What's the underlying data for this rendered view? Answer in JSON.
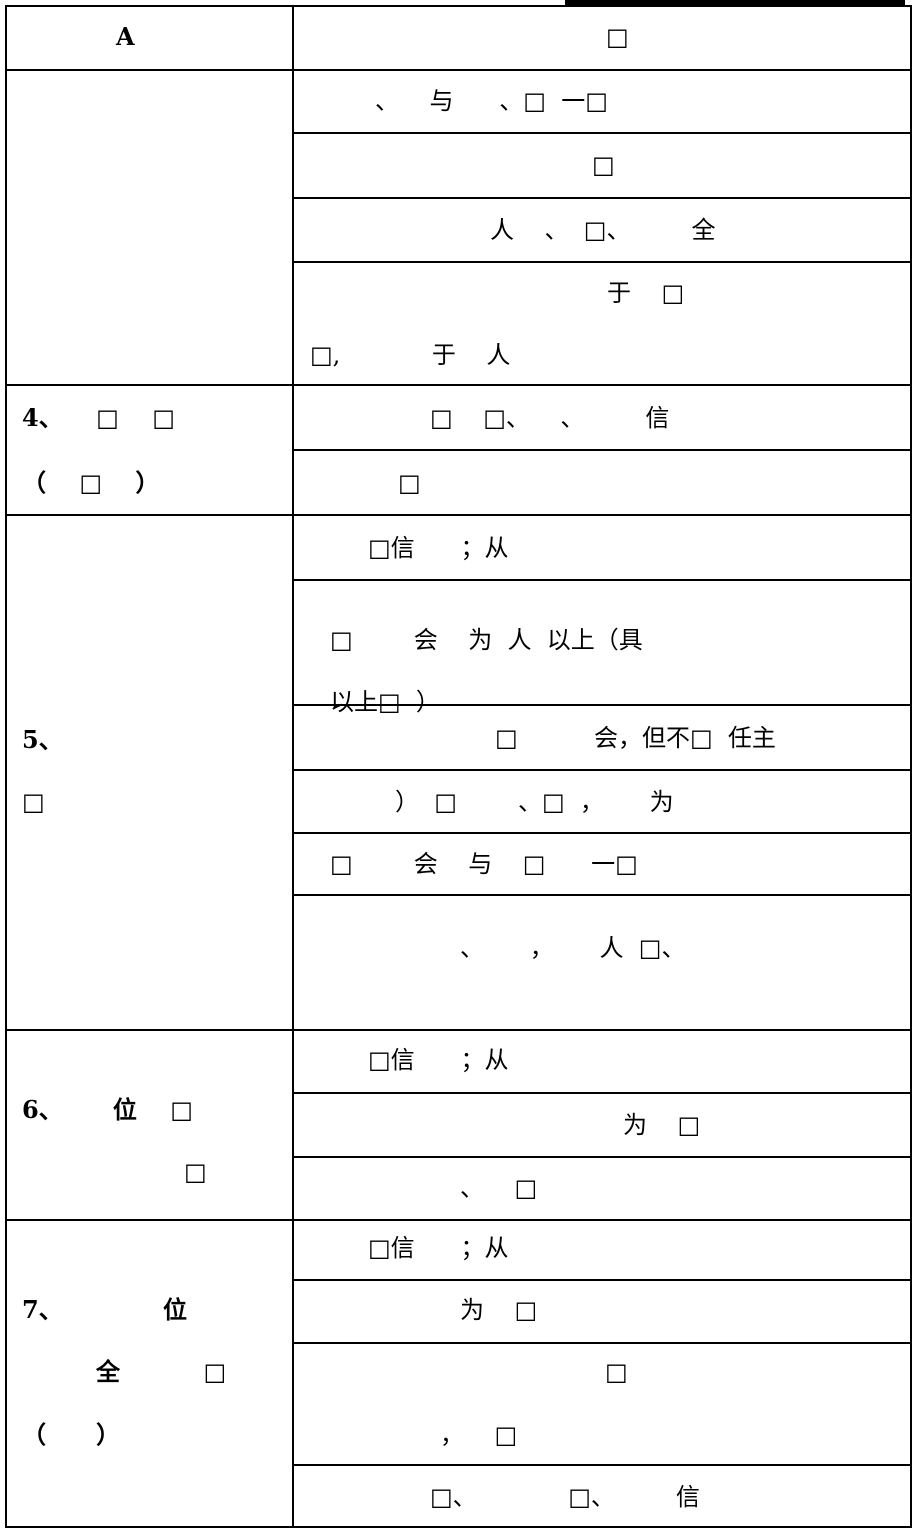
{
  "header": {
    "left": "A",
    "right": "□"
  },
  "groups": [
    {
      "right": [
        [
          "、    与      、□  一□"
        ],
        [
          "□"
        ],
        [
          "人    、  □、        全"
        ],
        [
          "于    □",
          "□,            于    人"
        ]
      ]
    },
    {
      "left": [
        "4、    □    □",
        "（    □    ）"
      ],
      "right": [
        [
          "□    □、    、        信"
        ],
        [
          "□"
        ]
      ]
    },
    {
      "left": [
        "5、",
        "□"
      ],
      "right": [
        [
          "□信      ；从"
        ],
        [
          "□        会    为  人  以上（具",
          "以上□  ）"
        ],
        [
          "□          会，但不□  任主"
        ],
        [
          "）  □        、□  ，      为"
        ],
        [
          "□        会    与    □      一□"
        ],
        [
          "、      ，      人  □、"
        ]
      ]
    },
    {
      "left": [
        "6、      位    □",
        "□"
      ],
      "right": [
        [
          "□信      ；从"
        ],
        [
          "为    □"
        ],
        [
          "、    □"
        ]
      ]
    },
    {
      "left": [
        "7、            位",
        "全          □",
        "（      ）"
      ],
      "right": [
        [
          "□信      ；从"
        ],
        [
          "为    □"
        ],
        [
          "□",
          "，    □"
        ],
        [
          "□、            □、        信"
        ]
      ]
    }
  ]
}
